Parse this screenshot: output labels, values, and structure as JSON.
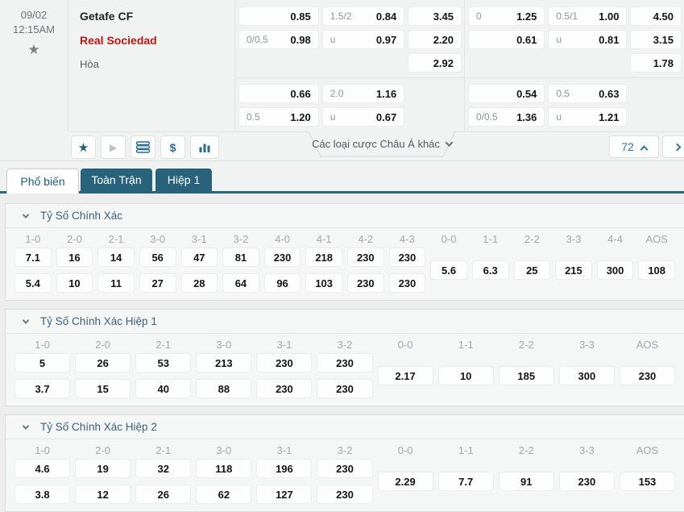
{
  "match": {
    "date": "09/02",
    "time": "12:15AM",
    "home_team": "Getafe CF",
    "away_team": "Real Sociedad",
    "draw_label": "Hòa"
  },
  "top_odds": {
    "g1": {
      "ft_ah_1": {
        "h": "",
        "o": "0.85"
      },
      "ft_ah_2": {
        "h": "0/0.5",
        "o": "0.98"
      },
      "ft_ou_1": {
        "h": "1.5/2",
        "o": "0.84"
      },
      "ft_ou_2": {
        "h": "u",
        "o": "0.97"
      },
      "ft_1x2": {
        "r1": "3.45",
        "r2": "2.20",
        "r3": "2.92"
      },
      "fh_ah_1": {
        "h": "",
        "o": "0.66"
      },
      "fh_ah_2": {
        "h": "0.5",
        "o": "1.20"
      },
      "fh_ou_1": {
        "h": "2.0",
        "o": "1.16"
      },
      "fh_ou_2": {
        "h": "u",
        "o": "0.67"
      }
    },
    "g2": {
      "ft_ah_1": {
        "h": "0",
        "o": "1.25"
      },
      "ft_ah_2": {
        "h": "",
        "o": "0.61"
      },
      "ft_ou_1": {
        "h": "0.5/1",
        "o": "1.00"
      },
      "ft_ou_2": {
        "h": "u",
        "o": "0.81"
      },
      "ft_1x2": {
        "r1": "4.50",
        "r2": "3.15",
        "r3": "1.78"
      },
      "fh_ah_1": {
        "h": "",
        "o": "0.54"
      },
      "fh_ah_2": {
        "h": "0/0.5",
        "o": "1.36"
      },
      "fh_ou_1": {
        "h": "0.5",
        "o": "0.63"
      },
      "fh_ou_2": {
        "h": "u",
        "o": "1.21"
      }
    }
  },
  "action_bar": {
    "dropdown_label": "Các loại cược Châu Á khác",
    "market_count": "72"
  },
  "tabs": [
    {
      "label": "Phổ biến"
    },
    {
      "label": "Toàn Trận"
    },
    {
      "label": "Hiệp 1"
    }
  ],
  "panels": [
    {
      "title": "Tỷ Số Chính Xác",
      "headers": [
        "1-0",
        "2-0",
        "2-1",
        "3-0",
        "3-1",
        "3-2",
        "4-0",
        "4-1",
        "4-2",
        "4-3",
        "0-0",
        "1-1",
        "2-2",
        "3-3",
        "4-4",
        "AOS"
      ],
      "pair_cols": [
        {
          "h": "7.1",
          "a": "5.4"
        },
        {
          "h": "16",
          "a": "10"
        },
        {
          "h": "14",
          "a": "11"
        },
        {
          "h": "56",
          "a": "27"
        },
        {
          "h": "47",
          "a": "28"
        },
        {
          "h": "81",
          "a": "64"
        },
        {
          "h": "230",
          "a": "96"
        },
        {
          "h": "218",
          "a": "103"
        },
        {
          "h": "230",
          "a": "230"
        },
        {
          "h": "230",
          "a": "230"
        }
      ],
      "draw_cols": [
        "5.6",
        "6.3",
        "25",
        "215",
        "300",
        "108"
      ]
    },
    {
      "title": "Tỷ Số Chính Xác Hiệp 1",
      "headers": [
        "1-0",
        "2-0",
        "2-1",
        "3-0",
        "3-1",
        "3-2",
        "0-0",
        "1-1",
        "2-2",
        "3-3",
        "AOS"
      ],
      "pair_cols": [
        {
          "h": "5",
          "a": "3.7"
        },
        {
          "h": "26",
          "a": "15"
        },
        {
          "h": "53",
          "a": "40"
        },
        {
          "h": "213",
          "a": "88"
        },
        {
          "h": "230",
          "a": "230"
        },
        {
          "h": "230",
          "a": "230"
        }
      ],
      "draw_cols": [
        "2.17",
        "10",
        "185",
        "300",
        "230"
      ]
    },
    {
      "title": "Tỷ Số Chính Xác Hiệp 2",
      "headers": [
        "1-0",
        "2-0",
        "2-1",
        "3-0",
        "3-1",
        "3-2",
        "0-0",
        "1-1",
        "2-2",
        "3-3",
        "AOS"
      ],
      "pair_cols": [
        {
          "h": "4.6",
          "a": "3.8"
        },
        {
          "h": "19",
          "a": "12"
        },
        {
          "h": "32",
          "a": "26"
        },
        {
          "h": "118",
          "a": "62"
        },
        {
          "h": "196",
          "a": "127"
        },
        {
          "h": "230",
          "a": "230"
        }
      ],
      "draw_cols": [
        "2.29",
        "7.7",
        "91",
        "230",
        "153"
      ]
    }
  ],
  "colors": {
    "accent_teal": "#28627b",
    "link_blue": "#35759c",
    "away_red": "#c21414"
  }
}
